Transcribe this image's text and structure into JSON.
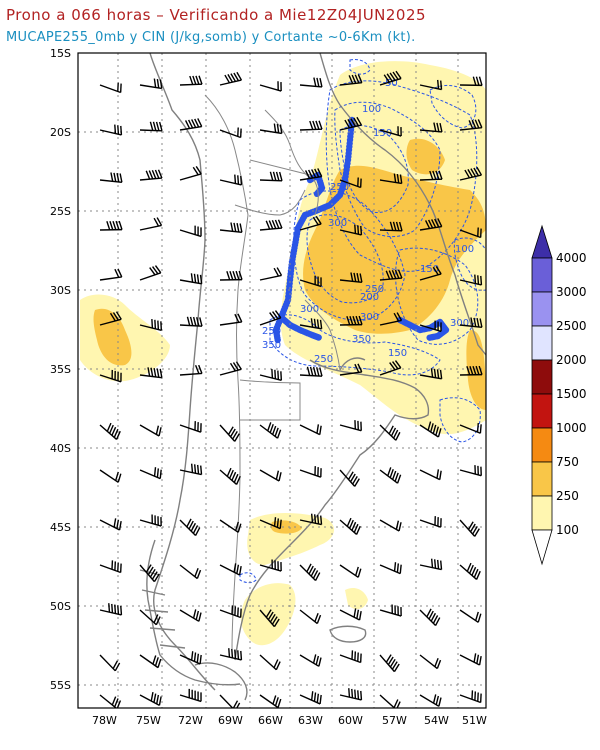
{
  "header": {
    "title": "Prono a 066 horas – Verificando a Mie12Z04JUN2025",
    "subtitle": "MUCAPE255_0mb y CIN (J/kg,somb) y Cortante ~0-6Km (kt)."
  },
  "map": {
    "lat_labels": [
      "15S",
      "20S",
      "25S",
      "30S",
      "35S",
      "40S",
      "45S",
      "50S",
      "55S"
    ],
    "lon_labels": [
      "78W",
      "75W",
      "72W",
      "69W",
      "66W",
      "63W",
      "60W",
      "57W",
      "54W",
      "51W"
    ],
    "contour_labels": [
      "50",
      "100",
      "150",
      "200",
      "250",
      "300",
      "350",
      "100",
      "150",
      "250",
      "300",
      "300",
      "350",
      "150",
      "250",
      "250",
      "300"
    ]
  },
  "colorbar": {
    "labels": [
      "100",
      "250",
      "750",
      "1000",
      "1500",
      "2000",
      "2500",
      "3000",
      "4000"
    ],
    "colors": [
      "#fff6b0",
      "#f9c648",
      "#f58a12",
      "#e83b0c",
      "#c21410",
      "#8e0c0c",
      "#e0e4ff",
      "#9a92f0",
      "#6a5fd8",
      "#3d2ea8"
    ]
  },
  "colors": {
    "cape_light": "#fff6b0",
    "cape_mid": "#f9c648",
    "cin_contour": "#2a55e6",
    "coast": "#808080"
  }
}
